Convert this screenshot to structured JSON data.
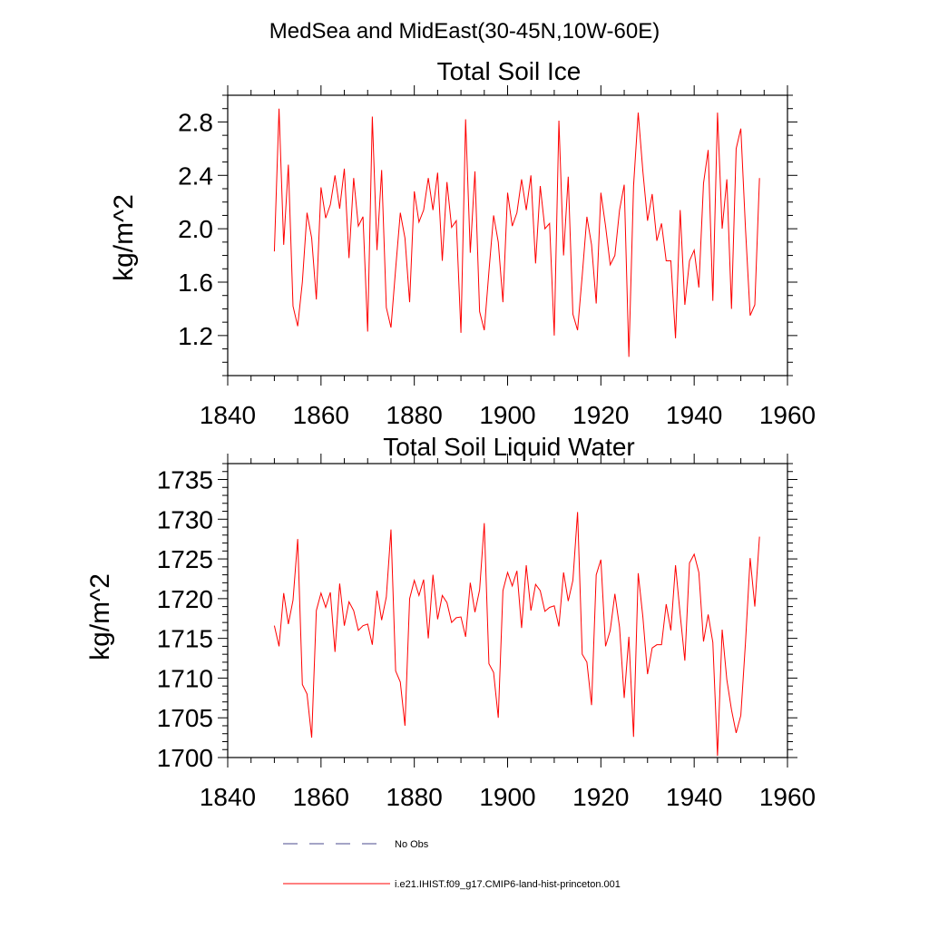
{
  "page": {
    "title": "MedSea and MidEast(30-45N,10W-60E)"
  },
  "colors": {
    "series_line": "#ff0000",
    "obs_line": "#4a4a8c",
    "axis": "#000000",
    "background": "#ffffff"
  },
  "legend": {
    "placement": "bottom-center",
    "items": [
      {
        "label": "No Obs",
        "style": "dashed",
        "color": "#4a4a8c"
      },
      {
        "label": "i.e21.IHIST.f09_g17.CMIP6-land-hist-princeton.001",
        "style": "solid",
        "color": "#ff0000"
      }
    ]
  },
  "chart_data": [
    {
      "type": "line",
      "title": "Total Soil Ice",
      "xlabel": "",
      "ylabel": "kg/m^2",
      "xlim": [
        1840,
        1960
      ],
      "ylim": [
        0.9,
        3.0
      ],
      "xticks": [
        1840,
        1860,
        1880,
        1900,
        1920,
        1940,
        1960
      ],
      "xtick_labels": [
        "1840",
        "1860",
        "1880",
        "1900",
        "1920",
        "1940",
        "1960"
      ],
      "yticks": [
        1.2,
        1.6,
        2.0,
        2.4,
        2.8
      ],
      "ytick_labels": [
        "1.2",
        "1.6",
        "2.0",
        "2.4",
        "2.8"
      ],
      "grid": false,
      "series": [
        {
          "name": "i.e21.IHIST.f09_g17.CMIP6-land-hist-princeton.001",
          "color": "#ff0000",
          "x_start": 1850,
          "x_step": 1,
          "values": [
            1.83,
            2.9,
            1.88,
            2.48,
            1.42,
            1.27,
            1.6,
            2.12,
            1.93,
            1.47,
            2.31,
            2.08,
            2.18,
            2.4,
            2.15,
            2.45,
            1.78,
            2.38,
            2.02,
            2.09,
            1.23,
            2.84,
            1.84,
            2.44,
            1.41,
            1.26,
            1.7,
            2.12,
            1.93,
            1.45,
            2.28,
            2.05,
            2.14,
            2.38,
            2.14,
            2.42,
            1.76,
            2.35,
            2.01,
            2.06,
            1.22,
            2.82,
            1.82,
            2.43,
            1.38,
            1.24,
            1.68,
            2.1,
            1.9,
            1.45,
            2.27,
            2.02,
            2.12,
            2.37,
            2.14,
            2.4,
            1.74,
            2.32,
            2.0,
            2.04,
            1.2,
            2.81,
            1.8,
            2.39,
            1.36,
            1.24,
            1.65,
            2.09,
            1.88,
            1.44,
            2.27,
            2.02,
            1.73,
            1.8,
            2.14,
            2.33,
            1.04,
            2.32,
            2.87,
            2.43,
            2.06,
            2.26,
            1.91,
            2.04,
            1.76,
            1.76,
            1.18,
            2.14,
            1.43,
            1.76,
            1.84,
            1.56,
            2.34,
            2.59,
            1.46,
            2.87,
            2.0,
            2.37,
            1.4,
            2.6,
            2.75,
            2.0,
            1.35,
            1.43,
            2.38
          ]
        }
      ]
    },
    {
      "type": "line",
      "title": "Total Soil Liquid Water",
      "xlabel": "",
      "ylabel": "kg/m^2",
      "xlim": [
        1840,
        1960
      ],
      "ylim": [
        1700,
        1737
      ],
      "xticks": [
        1840,
        1860,
        1880,
        1900,
        1920,
        1940,
        1960
      ],
      "xtick_labels": [
        "1840",
        "1860",
        "1880",
        "1900",
        "1920",
        "1940",
        "1960"
      ],
      "yticks": [
        1700,
        1705,
        1710,
        1715,
        1720,
        1725,
        1730,
        1735
      ],
      "ytick_labels": [
        "1700",
        "1705",
        "1710",
        "1715",
        "1720",
        "1725",
        "1730",
        "1735"
      ],
      "grid": false,
      "series": [
        {
          "name": "i.e21.IHIST.f09_g17.CMIP6-land-hist-princeton.001",
          "color": "#ff0000",
          "x_start": 1850,
          "x_step": 1,
          "values": [
            1716.6,
            1714.0,
            1720.7,
            1716.8,
            1719.8,
            1727.5,
            1709.2,
            1708.0,
            1702.5,
            1718.5,
            1720.7,
            1718.9,
            1720.8,
            1713.3,
            1721.9,
            1716.6,
            1719.6,
            1718.5,
            1716.0,
            1716.6,
            1716.8,
            1714.2,
            1721.0,
            1717.3,
            1720.2,
            1728.7,
            1710.9,
            1709.5,
            1704.0,
            1720.0,
            1722.3,
            1720.4,
            1722.4,
            1715.0,
            1723.0,
            1717.4,
            1720.4,
            1719.5,
            1717.0,
            1717.6,
            1717.7,
            1715.2,
            1722.0,
            1718.3,
            1721.1,
            1729.5,
            1711.8,
            1710.7,
            1705.0,
            1721.0,
            1723.3,
            1721.6,
            1723.5,
            1716.3,
            1724.2,
            1718.5,
            1721.8,
            1721.0,
            1718.4,
            1718.9,
            1719.1,
            1716.5,
            1723.3,
            1719.7,
            1722.3,
            1730.9,
            1713.0,
            1712.0,
            1706.6,
            1723.0,
            1724.9,
            1714.0,
            1716.0,
            1720.6,
            1716.4,
            1707.5,
            1715.2,
            1702.6,
            1723.2,
            1717.7,
            1710.5,
            1713.8,
            1714.2,
            1714.2,
            1719.3,
            1716.0,
            1724.2,
            1718.0,
            1712.2,
            1724.5,
            1725.6,
            1723.3,
            1714.6,
            1718.0,
            1714.5,
            1700.2,
            1716.1,
            1709.8,
            1706.0,
            1703.1,
            1705.3,
            1714.5,
            1725.1,
            1719.0,
            1727.8
          ]
        }
      ]
    }
  ]
}
